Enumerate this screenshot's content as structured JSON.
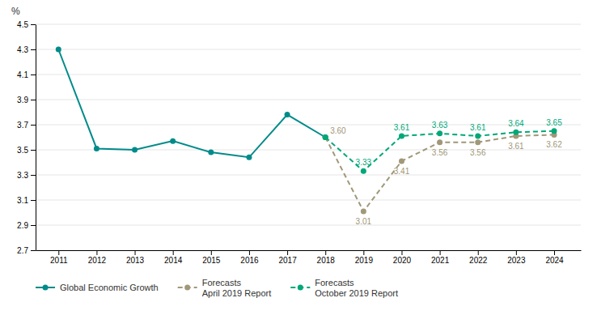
{
  "chart_data": {
    "type": "line",
    "ylabel": "%",
    "x": [
      2011,
      2012,
      2013,
      2014,
      2015,
      2016,
      2017,
      2018,
      2019,
      2020,
      2021,
      2022,
      2023,
      2024
    ],
    "series": [
      {
        "name": "Global Economic Growth",
        "color": "#008B8B",
        "line_style": "solid",
        "marker": "circle",
        "values": [
          4.3,
          3.51,
          3.5,
          3.57,
          3.48,
          3.44,
          3.78,
          3.6,
          null,
          null,
          null,
          null,
          null,
          null
        ]
      },
      {
        "name": "Forecasts\nApril 2019 Report",
        "color": "#a09878",
        "line_style": "dashed",
        "marker": "circle",
        "data_labels": true,
        "values": [
          null,
          null,
          null,
          null,
          null,
          null,
          null,
          3.6,
          3.01,
          3.41,
          3.56,
          3.56,
          3.61,
          3.62
        ],
        "value_labels": [
          null,
          null,
          null,
          null,
          null,
          null,
          null,
          "3.60",
          "3.01",
          "3.41",
          "3.56",
          "3.56",
          "3.61",
          "3.62"
        ]
      },
      {
        "name": "Forecasts\nOctober 2019 Report",
        "color": "#00a878",
        "line_style": "dashed",
        "marker": "circle",
        "data_labels": true,
        "values": [
          null,
          null,
          null,
          null,
          null,
          null,
          null,
          3.6,
          3.33,
          3.61,
          3.63,
          3.61,
          3.64,
          3.65
        ],
        "value_labels": [
          null,
          null,
          null,
          null,
          null,
          null,
          null,
          null,
          "3.33",
          "3.61",
          "3.63",
          "3.61",
          "3.64",
          "3.65"
        ]
      }
    ],
    "xlim": [
      2010.4,
      2024.7
    ],
    "xticks": [
      2011,
      2012,
      2013,
      2014,
      2015,
      2016,
      2017,
      2018,
      2019,
      2020,
      2021,
      2022,
      2023,
      2024
    ],
    "ylim": [
      2.7,
      4.5
    ],
    "yticks": [
      2.7,
      2.9,
      3.1,
      3.3,
      3.5,
      3.7,
      3.9,
      4.1,
      4.3,
      4.5
    ],
    "grid": true,
    "legend": "bottom"
  }
}
